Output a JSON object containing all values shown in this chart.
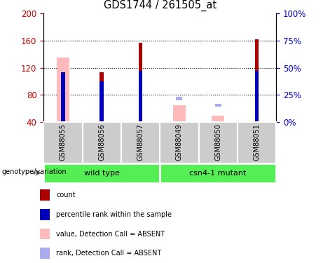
{
  "title": "GDS1744 / 261505_at",
  "samples": [
    "GSM88055",
    "GSM88056",
    "GSM88057",
    "GSM88049",
    "GSM88050",
    "GSM88051"
  ],
  "group_labels": [
    "wild type",
    "csn4-1 mutant"
  ],
  "ylim": [
    40,
    200
  ],
  "y2lim": [
    0,
    100
  ],
  "yticks": [
    40,
    80,
    120,
    160,
    200
  ],
  "y2ticks": [
    0,
    25,
    50,
    75,
    100
  ],
  "red_bars": [
    null,
    113,
    157,
    null,
    null,
    162
  ],
  "blue_bars": [
    113,
    100,
    115,
    null,
    null,
    115
  ],
  "pink_bars": [
    135,
    null,
    null,
    65,
    50,
    null
  ],
  "lightblue_bars": [
    null,
    null,
    null,
    75,
    65,
    null
  ],
  "red_color": "#aa0000",
  "blue_color": "#0000bb",
  "pink_color": "#ffbbbb",
  "lightblue_color": "#aaaaee",
  "plot_bg": "#ffffff",
  "tick_color_left": "#cc0000",
  "tick_color_right": "#0000cc",
  "group_bg": "#55ee55",
  "sample_bg": "#cccccc",
  "legend_items": [
    {
      "label": "count",
      "color": "#aa0000"
    },
    {
      "label": "percentile rank within the sample",
      "color": "#0000bb"
    },
    {
      "label": "value, Detection Call = ABSENT",
      "color": "#ffbbbb"
    },
    {
      "label": "rank, Detection Call = ABSENT",
      "color": "#aaaaee"
    }
  ]
}
